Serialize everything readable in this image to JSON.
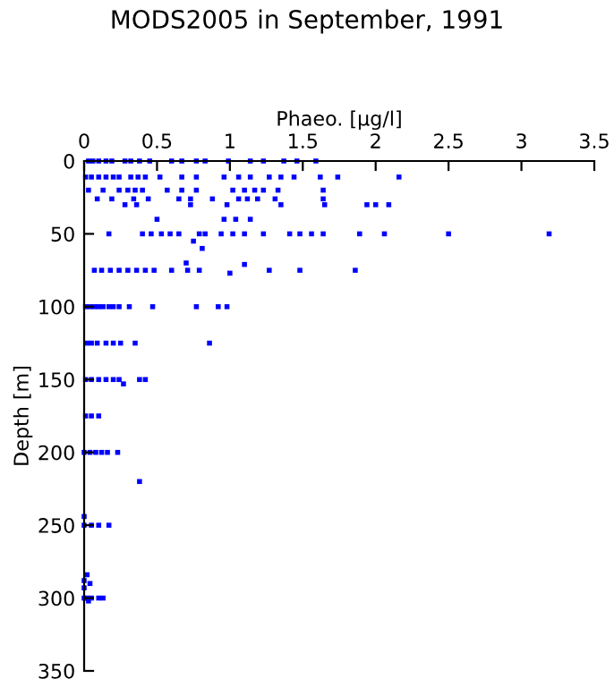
{
  "chart_data": {
    "type": "scatter",
    "title": "MODS2005 in September, 1991",
    "xlabel": "Phaeo. [µg/l]",
    "ylabel": "Depth [m]",
    "xlim": [
      0,
      3.5
    ],
    "xticks": [
      0,
      0.5,
      1,
      1.5,
      2,
      2.5,
      3,
      3.5
    ],
    "ylim": [
      350,
      0
    ],
    "yticks": [
      0,
      50,
      100,
      150,
      200,
      250,
      300,
      350
    ],
    "marker": "square",
    "grid": false,
    "series": [
      {
        "color": "#0000ff",
        "x": [
          0.03,
          0.06,
          0.1,
          0.15,
          0.19,
          0.28,
          0.32,
          0.38,
          0.45,
          0.6,
          0.67,
          0.77,
          0.83,
          0.99,
          1.14,
          1.23,
          1.37,
          1.46,
          1.59,
          0.01,
          0.05,
          0.1,
          0.15,
          0.2,
          0.24,
          0.32,
          0.37,
          0.42,
          0.52,
          0.67,
          0.77,
          0.96,
          1.06,
          1.14,
          1.27,
          1.35,
          1.44,
          1.62,
          1.74,
          2.16,
          0.03,
          0.13,
          0.24,
          0.3,
          0.35,
          0.4,
          0.57,
          0.67,
          0.77,
          1.02,
          1.1,
          1.17,
          1.23,
          1.33,
          1.64,
          0.09,
          0.19,
          0.34,
          0.44,
          0.65,
          0.73,
          0.88,
          1.06,
          1.12,
          1.19,
          1.31,
          1.64,
          0.28,
          0.36,
          0.73,
          0.98,
          1.35,
          1.65,
          1.94,
          2.0,
          2.09,
          0.5,
          0.96,
          1.04,
          1.14,
          0.17,
          0.4,
          0.46,
          0.53,
          0.59,
          0.65,
          0.79,
          0.83,
          0.94,
          1.02,
          1.1,
          1.23,
          1.41,
          1.48,
          1.56,
          1.64,
          1.89,
          2.06,
          2.5,
          3.19,
          0.75,
          0.81,
          0.07,
          0.12,
          0.18,
          0.24,
          0.3,
          0.36,
          0.42,
          0.48,
          0.6,
          0.7,
          0.71,
          0.79,
          1.0,
          1.1,
          1.27,
          1.48,
          1.86,
          0.01,
          0.04,
          0.07,
          0.1,
          0.13,
          0.17,
          0.2,
          0.24,
          0.31,
          0.47,
          0.77,
          0.92,
          0.98,
          0.02,
          0.05,
          0.09,
          0.15,
          0.2,
          0.25,
          0.35,
          0.86,
          0.01,
          0.05,
          0.1,
          0.15,
          0.2,
          0.24,
          0.27,
          0.38,
          0.42,
          0.01,
          0.05,
          0.1,
          0.0,
          0.04,
          0.08,
          0.12,
          0.16,
          0.23,
          0.38,
          0.0,
          0.0,
          0.05,
          0.1,
          0.17,
          0.02,
          0.0,
          0.0,
          0.04,
          0.0,
          0.02,
          0.05,
          0.1,
          0.13,
          0.03
        ],
        "values": [
          0,
          0,
          0,
          0,
          0,
          0,
          0,
          0,
          0,
          0,
          0,
          0,
          0,
          0,
          0,
          0,
          0,
          0,
          0,
          11,
          11,
          11,
          11,
          11,
          11,
          11,
          11,
          11,
          11,
          11,
          11,
          11,
          11,
          11,
          11,
          11,
          11,
          11,
          11,
          11,
          20,
          20,
          20,
          20,
          20,
          20,
          20,
          20,
          20,
          20,
          20,
          20,
          20,
          20,
          20,
          26,
          26,
          26,
          26,
          26,
          26,
          26,
          26,
          26,
          26,
          26,
          26,
          30,
          30,
          30,
          30,
          30,
          30,
          30,
          30,
          30,
          40,
          40,
          40,
          40,
          50,
          50,
          50,
          50,
          50,
          50,
          50,
          50,
          50,
          50,
          50,
          50,
          50,
          50,
          50,
          50,
          50,
          50,
          50,
          50,
          55,
          60,
          75,
          75,
          75,
          75,
          75,
          75,
          75,
          75,
          75,
          70,
          75,
          75,
          77,
          71,
          75,
          75,
          75,
          100,
          100,
          100,
          100,
          100,
          100,
          100,
          100,
          100,
          100,
          100,
          100,
          100,
          125,
          125,
          125,
          125,
          125,
          125,
          125,
          125,
          150,
          150,
          150,
          150,
          150,
          150,
          153,
          150,
          150,
          175,
          175,
          175,
          200,
          200,
          200,
          200,
          200,
          200,
          220,
          244,
          250,
          250,
          250,
          250,
          284,
          288,
          293,
          290,
          300,
          300,
          300,
          300,
          300,
          302
        ]
      }
    ]
  }
}
